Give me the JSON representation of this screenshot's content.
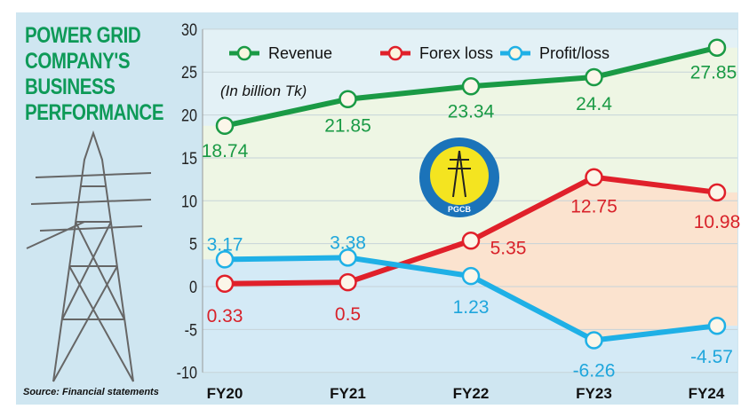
{
  "title": "POWER GRID\nCOMPANY'S\nBUSINESS\nPERFORMANCE",
  "source": "Source: Financial statements",
  "logo_text": "PGCB ESTD. 1996",
  "chart_data": {
    "type": "line",
    "categories": [
      "FY20",
      "FY21",
      "FY22",
      "FY23",
      "FY24"
    ],
    "unit_note": "(In billion Tk)",
    "ylim": [
      -10,
      30
    ],
    "yticks": [
      30,
      25,
      20,
      15,
      10,
      5,
      0,
      -5,
      -10
    ],
    "grid": true,
    "legend": "top",
    "series": [
      {
        "name": "Revenue",
        "color": "#1a9a45",
        "labelColor": "#1a9a45",
        "values": [
          18.74,
          21.85,
          23.34,
          24.4,
          27.85
        ],
        "labels": [
          "18.74",
          "21.85",
          "23.34",
          "24.4",
          "27.85"
        ]
      },
      {
        "name": "Forex loss",
        "color": "#e0202a",
        "labelColor": "#d8222a",
        "values": [
          0.33,
          0.5,
          5.35,
          12.75,
          10.98
        ],
        "labels": [
          "0.33",
          "0.5",
          "5.35",
          "12.75",
          "10.98"
        ]
      },
      {
        "name": "Profit/loss",
        "color": "#1fb0e6",
        "labelColor": "#1fa6dc",
        "values": [
          3.17,
          3.38,
          1.23,
          -6.26,
          -4.57
        ],
        "labels": [
          "3.17",
          "3.38",
          "1.23",
          "-6.26",
          "-4.57"
        ]
      }
    ]
  }
}
